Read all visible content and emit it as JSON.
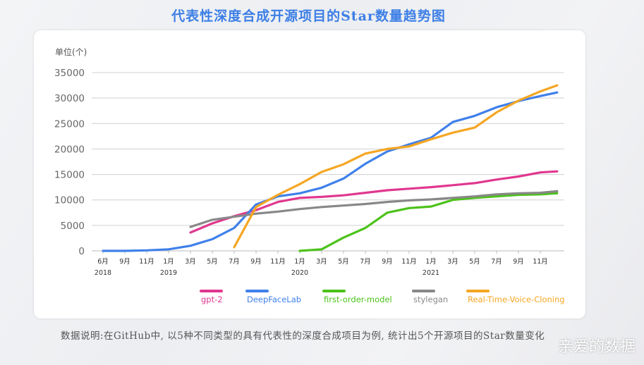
{
  "title": "代表性深度合成开源项目的Star数量趋势图",
  "footnote": "数据说明:在GitHub中, 以5种不同类型的具有代表性的深度合成项目为例, 统计出5个开源项目的Star数量变化",
  "watermark": "亲爱的数据",
  "chart_data": {
    "type": "line",
    "title": "代表性深度合成开源项目的Star数量趋势图",
    "ylabel": "单位(个)",
    "ylim": [
      0,
      35000
    ],
    "yticks": [
      0,
      5000,
      10000,
      15000,
      20000,
      25000,
      30000,
      35000
    ],
    "grid": true,
    "legend_position": "bottom",
    "categories": [
      "6月",
      "9月",
      "11月",
      "1月",
      "3月",
      "5月",
      "7月",
      "9月",
      "11月",
      "1月",
      "3月",
      "5月",
      "7月",
      "9月",
      "11月",
      "1月",
      "3月",
      "5月",
      "7月",
      "9月",
      "11月",
      ""
    ],
    "year_labels": [
      {
        "at": "6月",
        "index": 0,
        "label": "2018"
      },
      {
        "index": 3,
        "label": "2019"
      },
      {
        "index": 9,
        "label": "2020"
      },
      {
        "index": 15,
        "label": "2021"
      }
    ],
    "series": [
      {
        "name": "gpt-2",
        "color": "#e0388f",
        "values": [
          null,
          null,
          null,
          null,
          3600,
          5400,
          6800,
          8000,
          9600,
          10400,
          10600,
          10900,
          11400,
          11900,
          12200,
          12500,
          12900,
          13300,
          14000,
          14600,
          15400,
          15600
        ]
      },
      {
        "name": "DeepFaceLab",
        "color": "#3f80ea",
        "values": [
          0,
          0,
          100,
          300,
          1000,
          2300,
          4500,
          9100,
          10700,
          11300,
          12400,
          14200,
          17100,
          19500,
          20900,
          22200,
          25300,
          26500,
          28200,
          29400,
          30400,
          31100
        ]
      },
      {
        "name": "first-order-model",
        "color": "#4cc21a",
        "values": [
          null,
          null,
          null,
          null,
          null,
          null,
          null,
          null,
          null,
          0,
          300,
          2600,
          4500,
          7500,
          8400,
          8700,
          10000,
          10400,
          10700,
          11000,
          11100,
          11300
        ]
      },
      {
        "name": "stylegan",
        "color": "#888888",
        "values": [
          null,
          null,
          null,
          null,
          4700,
          6100,
          6700,
          7300,
          7700,
          8200,
          8600,
          8900,
          9200,
          9600,
          9900,
          10100,
          10400,
          10700,
          11100,
          11300,
          11400,
          11700
        ]
      },
      {
        "name": "Real-Time-Voice-Cloning",
        "color": "#f5a623",
        "values": [
          null,
          null,
          null,
          null,
          null,
          null,
          700,
          8600,
          11000,
          13100,
          15500,
          17000,
          19100,
          20000,
          20500,
          21900,
          23200,
          24200,
          27200,
          29500,
          31300,
          32500
        ]
      }
    ]
  }
}
